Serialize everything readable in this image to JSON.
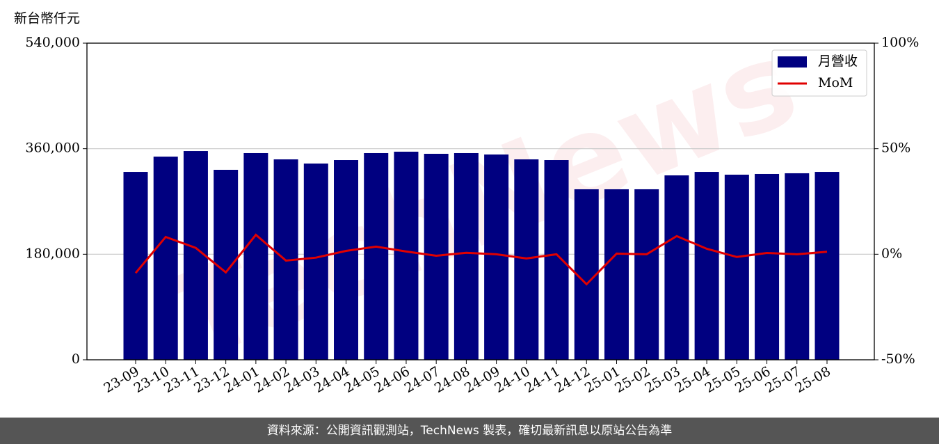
{
  "chart_data": {
    "type": "bar",
    "y_axis_label": "新台幣仟元",
    "watermark": "TechNews",
    "categories": [
      "23-09",
      "23-10",
      "23-11",
      "23-12",
      "24-01",
      "24-02",
      "24-03",
      "24-04",
      "24-05",
      "24-06",
      "24-07",
      "24-08",
      "24-09",
      "24-10",
      "24-11",
      "24-12",
      "25-01",
      "25-02",
      "25-03",
      "25-04",
      "25-05",
      "25-06",
      "25-07",
      "25-08"
    ],
    "series": [
      {
        "name": "月營收",
        "type": "bar",
        "color": "#000080",
        "values": [
          320400,
          346500,
          356000,
          324000,
          352500,
          341800,
          334700,
          340600,
          352500,
          354900,
          351300,
          352500,
          350100,
          341800,
          340600,
          290800,
          290800,
          290800,
          314500,
          320400,
          315700,
          316900,
          318100,
          320400
        ]
      },
      {
        "name": "MoM",
        "type": "line",
        "axis": "y2",
        "color": "#e00000",
        "values": [
          -8.9,
          8.2,
          3.0,
          -8.6,
          9.2,
          -3.0,
          -1.6,
          1.6,
          3.6,
          1.3,
          -0.7,
          0.7,
          0.0,
          -2.0,
          0.0,
          -14.2,
          0.3,
          0.0,
          8.6,
          2.6,
          -1.3,
          0.6,
          0.0,
          1.2
        ]
      }
    ],
    "ylim": [
      0,
      540000
    ],
    "yticks": [
      0,
      {
        "value": 180000,
        "label": "180,000"
      },
      {
        "value": 360000,
        "label": "360,000"
      },
      {
        "value": 540000,
        "label": "540,000"
      }
    ],
    "y2lim": [
      -50,
      100
    ],
    "y2ticks": [
      {
        "value": -50,
        "label": "-50%"
      },
      {
        "value": 0,
        "label": "0%"
      },
      {
        "value": 50,
        "label": "50%"
      },
      {
        "value": 100,
        "label": "100%"
      }
    ],
    "grid": true,
    "legend": "upper right"
  },
  "footer": {
    "text": "資料來源：公開資訊觀測站，TechNews 製表，確切最新訊息以原站公告為準"
  }
}
